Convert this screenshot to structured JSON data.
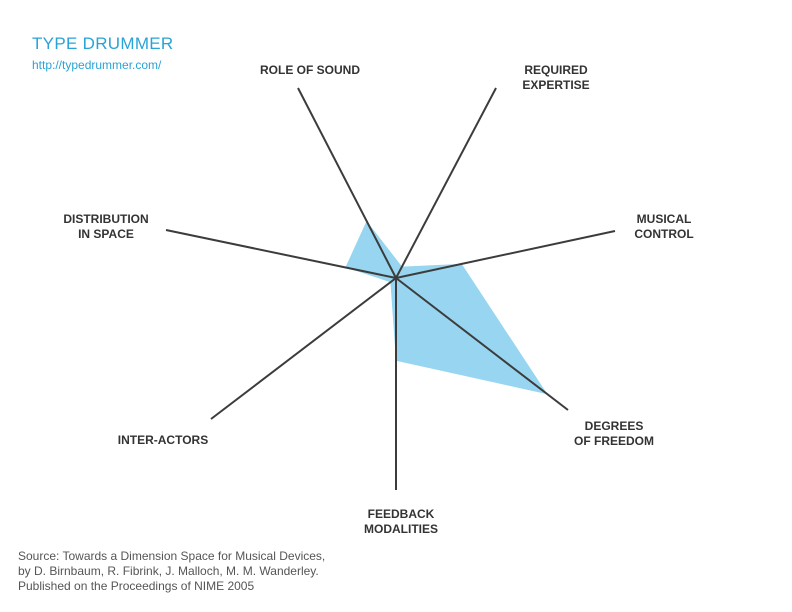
{
  "header": {
    "title": "TYPE DRUMMER",
    "url": "http://typedrummer.com/"
  },
  "source": {
    "lines": [
      "Source: Towards a Dimension Space for Musical Devices,",
      "by D. Birnbaum, R. Fibrink, J. Malloch, M. M. Wanderley.",
      "Published on the Proceedings of NIME 2005"
    ]
  },
  "colors": {
    "fill": "#97d5f0",
    "axis": "#3c3c3c",
    "accent": "#29a3d6"
  },
  "chart_data": {
    "type": "radar",
    "axes": [
      {
        "label_lines": [
          "ROLE OF SOUND"
        ]
      },
      {
        "label_lines": [
          "REQUIRED",
          "EXPERTISE"
        ]
      },
      {
        "label_lines": [
          "MUSICAL",
          "CONTROL"
        ]
      },
      {
        "label_lines": [
          "DEGREES",
          "OF FREEDOM"
        ]
      },
      {
        "label_lines": [
          "FEEDBACK",
          "MODALITIES"
        ]
      },
      {
        "label_lines": [
          "INTER-ACTORS"
        ]
      },
      {
        "label_lines": [
          "DISTRIBUTION",
          "IN SPACE"
        ]
      }
    ],
    "values": [
      0.3,
      0.06,
      0.3,
      0.88,
      0.39,
      0.03,
      0.22
    ],
    "max": 1
  }
}
